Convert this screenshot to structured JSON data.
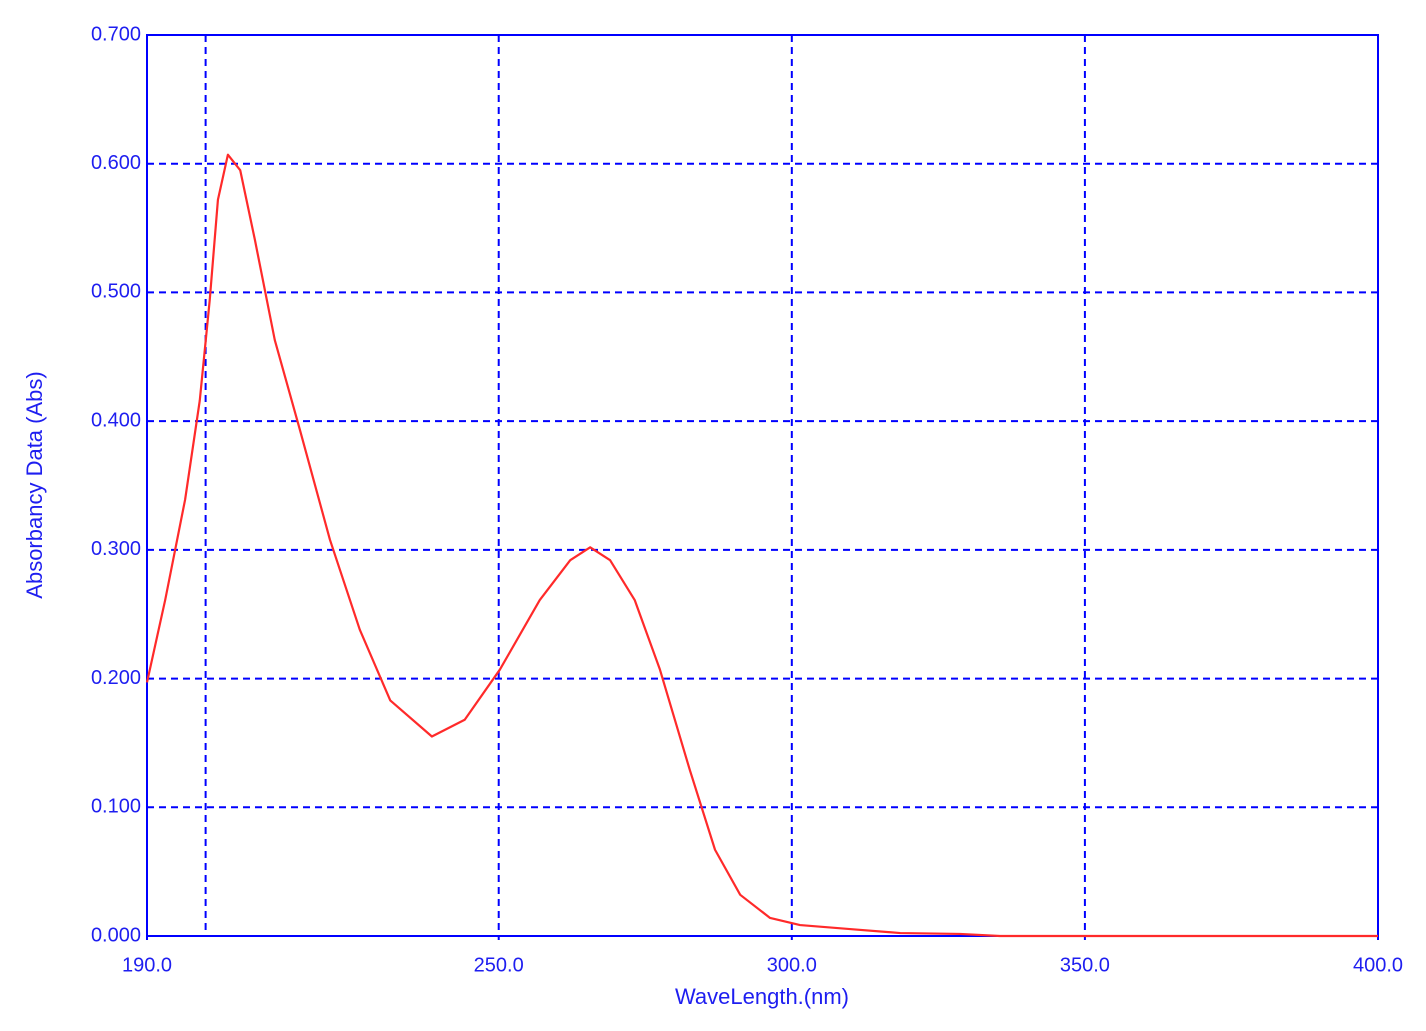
{
  "chart_data": {
    "type": "line",
    "x_label": "WaveLength.(nm)",
    "y_label": "Absorbancy Data (Abs)",
    "xlim": [
      190,
      400
    ],
    "ylim": [
      0,
      0.7
    ],
    "xticks": [
      {
        "value": 190,
        "label": "190.0"
      },
      {
        "value": 250,
        "label": "250.0"
      },
      {
        "value": 300,
        "label": "300.0"
      },
      {
        "value": 350,
        "label": "350.0"
      },
      {
        "value": 400,
        "label": "400.0"
      }
    ],
    "xgrid": [
      200,
      250,
      300,
      350
    ],
    "yticks": [
      {
        "value": 0,
        "label": "0.000"
      },
      {
        "value": 0.1,
        "label": "0.100"
      },
      {
        "value": 0.2,
        "label": "0.200"
      },
      {
        "value": 0.3,
        "label": "0.300"
      },
      {
        "value": 0.4,
        "label": "0.400"
      },
      {
        "value": 0.5,
        "label": "0.500"
      },
      {
        "value": 0.6,
        "label": "0.600"
      },
      {
        "value": 0.7,
        "label": "0.700"
      }
    ],
    "grid": true,
    "axis_color": "#0000ff",
    "x": [
      190,
      193.1,
      196.5,
      199.0,
      200.7,
      202.1,
      203.8,
      205.9,
      208.4,
      211.8,
      216.1,
      221.2,
      226.3,
      231.5,
      238.6,
      244.2,
      250.2,
      257.0,
      262.2,
      265.6,
      269.0,
      273.2,
      277.5,
      282.6,
      286.9,
      291.2,
      296.3,
      301.4,
      309.9,
      318.5,
      328.7,
      335.5,
      350,
      375,
      400
    ],
    "series": [
      {
        "color": "#ff2a2a",
        "values": [
          0.197,
          0.261,
          0.339,
          0.416,
          0.494,
          0.572,
          0.607,
          0.595,
          0.541,
          0.463,
          0.393,
          0.308,
          0.238,
          0.183,
          0.155,
          0.168,
          0.207,
          0.261,
          0.292,
          0.302,
          0.292,
          0.261,
          0.207,
          0.129,
          0.067,
          0.032,
          0.014,
          0.0085,
          0.0054,
          0.0023,
          0.0016,
          0,
          0,
          0,
          0
        ]
      }
    ]
  }
}
